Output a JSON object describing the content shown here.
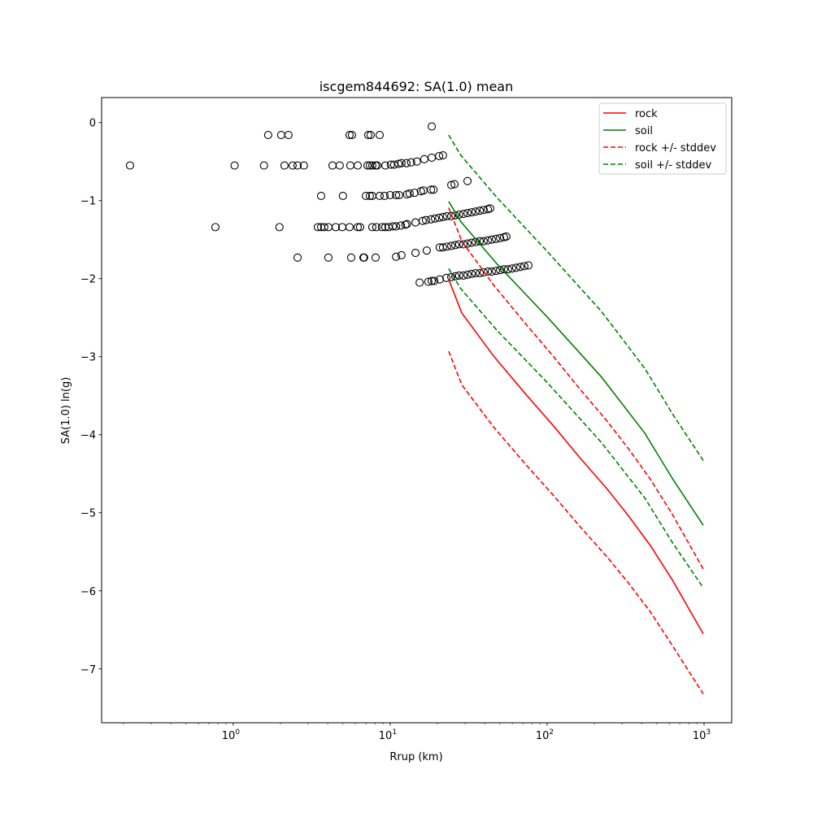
{
  "chart_data": {
    "type": "scatter",
    "title": "iscgem844692: SA(1.0) mean",
    "xlabel": "Rrup (km)",
    "ylabel": "SA(1.0) ln(g)",
    "xscale": "log",
    "xlim": [
      0.145,
      1500
    ],
    "ylim": [
      -7.69,
      0.32
    ],
    "grid": false,
    "legend_placement": "top-right",
    "x_ticks": [
      {
        "value": 1,
        "base": "10",
        "exp": "0"
      },
      {
        "value": 10,
        "base": "10",
        "exp": "1"
      },
      {
        "value": 100,
        "base": "10",
        "exp": "2"
      },
      {
        "value": 1000,
        "base": "10",
        "exp": "3"
      }
    ],
    "y_ticks": [
      {
        "value": 0,
        "label": "0"
      },
      {
        "value": -1,
        "label": "−1"
      },
      {
        "value": -2,
        "label": "−2"
      },
      {
        "value": -3,
        "label": "−3"
      },
      {
        "value": -4,
        "label": "−4"
      },
      {
        "value": -5,
        "label": "−5"
      },
      {
        "value": -6,
        "label": "−6"
      },
      {
        "value": -7,
        "label": "−7"
      }
    ],
    "series": [
      {
        "name": "rock",
        "color": "#ff0000",
        "dash": false,
        "x": [
          23.6,
          28.6,
          45.5,
          73,
          109,
          161,
          242,
          330,
          455,
          628,
          988
        ],
        "y": [
          -2.01,
          -2.44,
          -2.99,
          -3.48,
          -3.88,
          -4.29,
          -4.7,
          -5.04,
          -5.42,
          -5.86,
          -6.55
        ]
      },
      {
        "name": "soil",
        "color": "#008000",
        "dash": false,
        "x": [
          23.6,
          28.2,
          48.3,
          100,
          222,
          419,
          628,
          988
        ],
        "y": [
          -1.01,
          -1.27,
          -1.82,
          -2.49,
          -3.26,
          -3.98,
          -4.56,
          -5.16
        ]
      },
      {
        "name": "rock +/- stddev",
        "color": "#ff0000",
        "dash": true,
        "x": [
          23.6,
          28.6,
          45.5,
          73,
          109,
          161,
          242,
          330,
          455,
          628,
          988
        ],
        "y": [
          -1.09,
          -1.52,
          -2.08,
          -2.58,
          -2.99,
          -3.41,
          -3.83,
          -4.18,
          -4.57,
          -5.02,
          -5.72
        ]
      },
      {
        "name": "rock - stddev",
        "color": "#ff0000",
        "dash": true,
        "legend": false,
        "x": [
          23.6,
          28.6,
          45.5,
          73,
          109,
          161,
          242,
          330,
          455,
          628,
          988
        ],
        "y": [
          -2.93,
          -3.36,
          -3.9,
          -4.38,
          -4.77,
          -5.17,
          -5.57,
          -5.9,
          -6.27,
          -6.7,
          -7.32
        ]
      },
      {
        "name": "soil +/- stddev",
        "color": "#008000",
        "dash": true,
        "x": [
          23.6,
          28.2,
          48.3,
          100,
          222,
          419,
          628,
          988
        ],
        "y": [
          -0.16,
          -0.42,
          -0.97,
          -1.65,
          -2.42,
          -3.15,
          -3.73,
          -4.33
        ]
      },
      {
        "name": "soil - stddev",
        "color": "#008000",
        "dash": true,
        "legend": false,
        "x": [
          23.6,
          28.2,
          48.3,
          100,
          222,
          419,
          628,
          988
        ],
        "y": [
          -1.87,
          -2.13,
          -2.67,
          -3.33,
          -4.1,
          -4.81,
          -5.38,
          -5.96
        ]
      }
    ],
    "points": [
      [
        1.67,
        -0.16
      ],
      [
        2.02,
        -0.16
      ],
      [
        2.25,
        -0.16
      ],
      [
        5.51,
        -0.16
      ],
      [
        5.71,
        -0.16
      ],
      [
        7.25,
        -0.16
      ],
      [
        7.51,
        -0.16
      ],
      [
        8.57,
        -0.16
      ],
      [
        18.4,
        -0.05
      ],
      [
        0.22,
        -0.55
      ],
      [
        1.02,
        -0.55
      ],
      [
        1.57,
        -0.55
      ],
      [
        2.12,
        -0.55
      ],
      [
        2.39,
        -0.55
      ],
      [
        2.57,
        -0.55
      ],
      [
        2.82,
        -0.55
      ],
      [
        4.29,
        -0.55
      ],
      [
        4.77,
        -0.55
      ],
      [
        5.57,
        -0.55
      ],
      [
        6.21,
        -0.55
      ],
      [
        7.16,
        -0.55
      ],
      [
        7.42,
        -0.55
      ],
      [
        7.69,
        -0.55
      ],
      [
        8.07,
        -0.55
      ],
      [
        8.26,
        -0.55
      ],
      [
        9.31,
        -0.55
      ],
      [
        10.1,
        -0.54
      ],
      [
        10.6,
        -0.54
      ],
      [
        11.3,
        -0.53
      ],
      [
        11.8,
        -0.52
      ],
      [
        12.7,
        -0.52
      ],
      [
        13.6,
        -0.51
      ],
      [
        14.8,
        -0.5
      ],
      [
        16.5,
        -0.47
      ],
      [
        18.4,
        -0.45
      ],
      [
        20.5,
        -0.43
      ],
      [
        21.7,
        -0.42
      ],
      [
        3.63,
        -0.94
      ],
      [
        5.0,
        -0.94
      ],
      [
        7.0,
        -0.94
      ],
      [
        7.42,
        -0.94
      ],
      [
        7.69,
        -0.94
      ],
      [
        8.57,
        -0.94
      ],
      [
        9.2,
        -0.94
      ],
      [
        10.0,
        -0.93
      ],
      [
        10.9,
        -0.93
      ],
      [
        11.4,
        -0.93
      ],
      [
        12.8,
        -0.92
      ],
      [
        13.3,
        -0.91
      ],
      [
        14.3,
        -0.9
      ],
      [
        15.7,
        -0.88
      ],
      [
        16.3,
        -0.87
      ],
      [
        18.2,
        -0.86
      ],
      [
        18.9,
        -0.86
      ],
      [
        24.5,
        -0.8
      ],
      [
        25.7,
        -0.79
      ],
      [
        31.1,
        -0.75
      ],
      [
        0.77,
        -1.34
      ],
      [
        1.97,
        -1.34
      ],
      [
        3.46,
        -1.34
      ],
      [
        3.63,
        -1.34
      ],
      [
        3.8,
        -1.34
      ],
      [
        4.04,
        -1.34
      ],
      [
        4.5,
        -1.34
      ],
      [
        4.95,
        -1.34
      ],
      [
        5.51,
        -1.34
      ],
      [
        6.21,
        -1.34
      ],
      [
        6.43,
        -1.34
      ],
      [
        7.69,
        -1.34
      ],
      [
        8.16,
        -1.34
      ],
      [
        8.87,
        -1.34
      ],
      [
        9.31,
        -1.34
      ],
      [
        9.77,
        -1.34
      ],
      [
        10.4,
        -1.33
      ],
      [
        10.9,
        -1.33
      ],
      [
        11.7,
        -1.32
      ],
      [
        12.5,
        -1.31
      ],
      [
        12.8,
        -1.3
      ],
      [
        14.5,
        -1.28
      ],
      [
        16.1,
        -1.26
      ],
      [
        16.9,
        -1.25
      ],
      [
        18.2,
        -1.24
      ],
      [
        19.3,
        -1.23
      ],
      [
        20.5,
        -1.22
      ],
      [
        21.7,
        -1.21
      ],
      [
        23.0,
        -1.2
      ],
      [
        24.5,
        -1.2
      ],
      [
        26.0,
        -1.19
      ],
      [
        27.5,
        -1.18
      ],
      [
        29.3,
        -1.17
      ],
      [
        31.1,
        -1.16
      ],
      [
        33.0,
        -1.15
      ],
      [
        35.0,
        -1.14
      ],
      [
        37.2,
        -1.13
      ],
      [
        39.4,
        -1.12
      ],
      [
        41.9,
        -1.11
      ],
      [
        43.3,
        -1.1
      ],
      [
        2.57,
        -1.73
      ],
      [
        4.04,
        -1.73
      ],
      [
        5.64,
        -1.73
      ],
      [
        6.75,
        -1.73
      ],
      [
        6.82,
        -1.73
      ],
      [
        8.07,
        -1.73
      ],
      [
        10.9,
        -1.72
      ],
      [
        11.8,
        -1.7
      ],
      [
        14.5,
        -1.67
      ],
      [
        17.1,
        -1.64
      ],
      [
        20.7,
        -1.6
      ],
      [
        21.7,
        -1.6
      ],
      [
        23.0,
        -1.59
      ],
      [
        24.5,
        -1.58
      ],
      [
        26.0,
        -1.57
      ],
      [
        27.5,
        -1.56
      ],
      [
        29.3,
        -1.56
      ],
      [
        31.1,
        -1.55
      ],
      [
        33.0,
        -1.54
      ],
      [
        35.0,
        -1.53
      ],
      [
        37.2,
        -1.52
      ],
      [
        39.4,
        -1.52
      ],
      [
        41.9,
        -1.51
      ],
      [
        44.4,
        -1.5
      ],
      [
        47.2,
        -1.49
      ],
      [
        50.1,
        -1.48
      ],
      [
        53.1,
        -1.47
      ],
      [
        55.0,
        -1.46
      ],
      [
        15.4,
        -2.05
      ],
      [
        17.5,
        -2.04
      ],
      [
        18.4,
        -2.03
      ],
      [
        19.1,
        -2.03
      ],
      [
        20.7,
        -2.01
      ],
      [
        22.8,
        -1.99
      ],
      [
        24.5,
        -1.98
      ],
      [
        26.0,
        -1.97
      ],
      [
        27.5,
        -1.96
      ],
      [
        29.3,
        -1.96
      ],
      [
        31.1,
        -1.95
      ],
      [
        33.0,
        -1.94
      ],
      [
        35.0,
        -1.93
      ],
      [
        37.2,
        -1.93
      ],
      [
        39.4,
        -1.92
      ],
      [
        41.9,
        -1.91
      ],
      [
        44.4,
        -1.91
      ],
      [
        47.2,
        -1.9
      ],
      [
        50.1,
        -1.89
      ],
      [
        53.1,
        -1.88
      ],
      [
        56.4,
        -1.88
      ],
      [
        59.8,
        -1.87
      ],
      [
        63.5,
        -1.86
      ],
      [
        67.5,
        -1.85
      ],
      [
        71.6,
        -1.84
      ],
      [
        76.0,
        -1.83
      ]
    ]
  }
}
